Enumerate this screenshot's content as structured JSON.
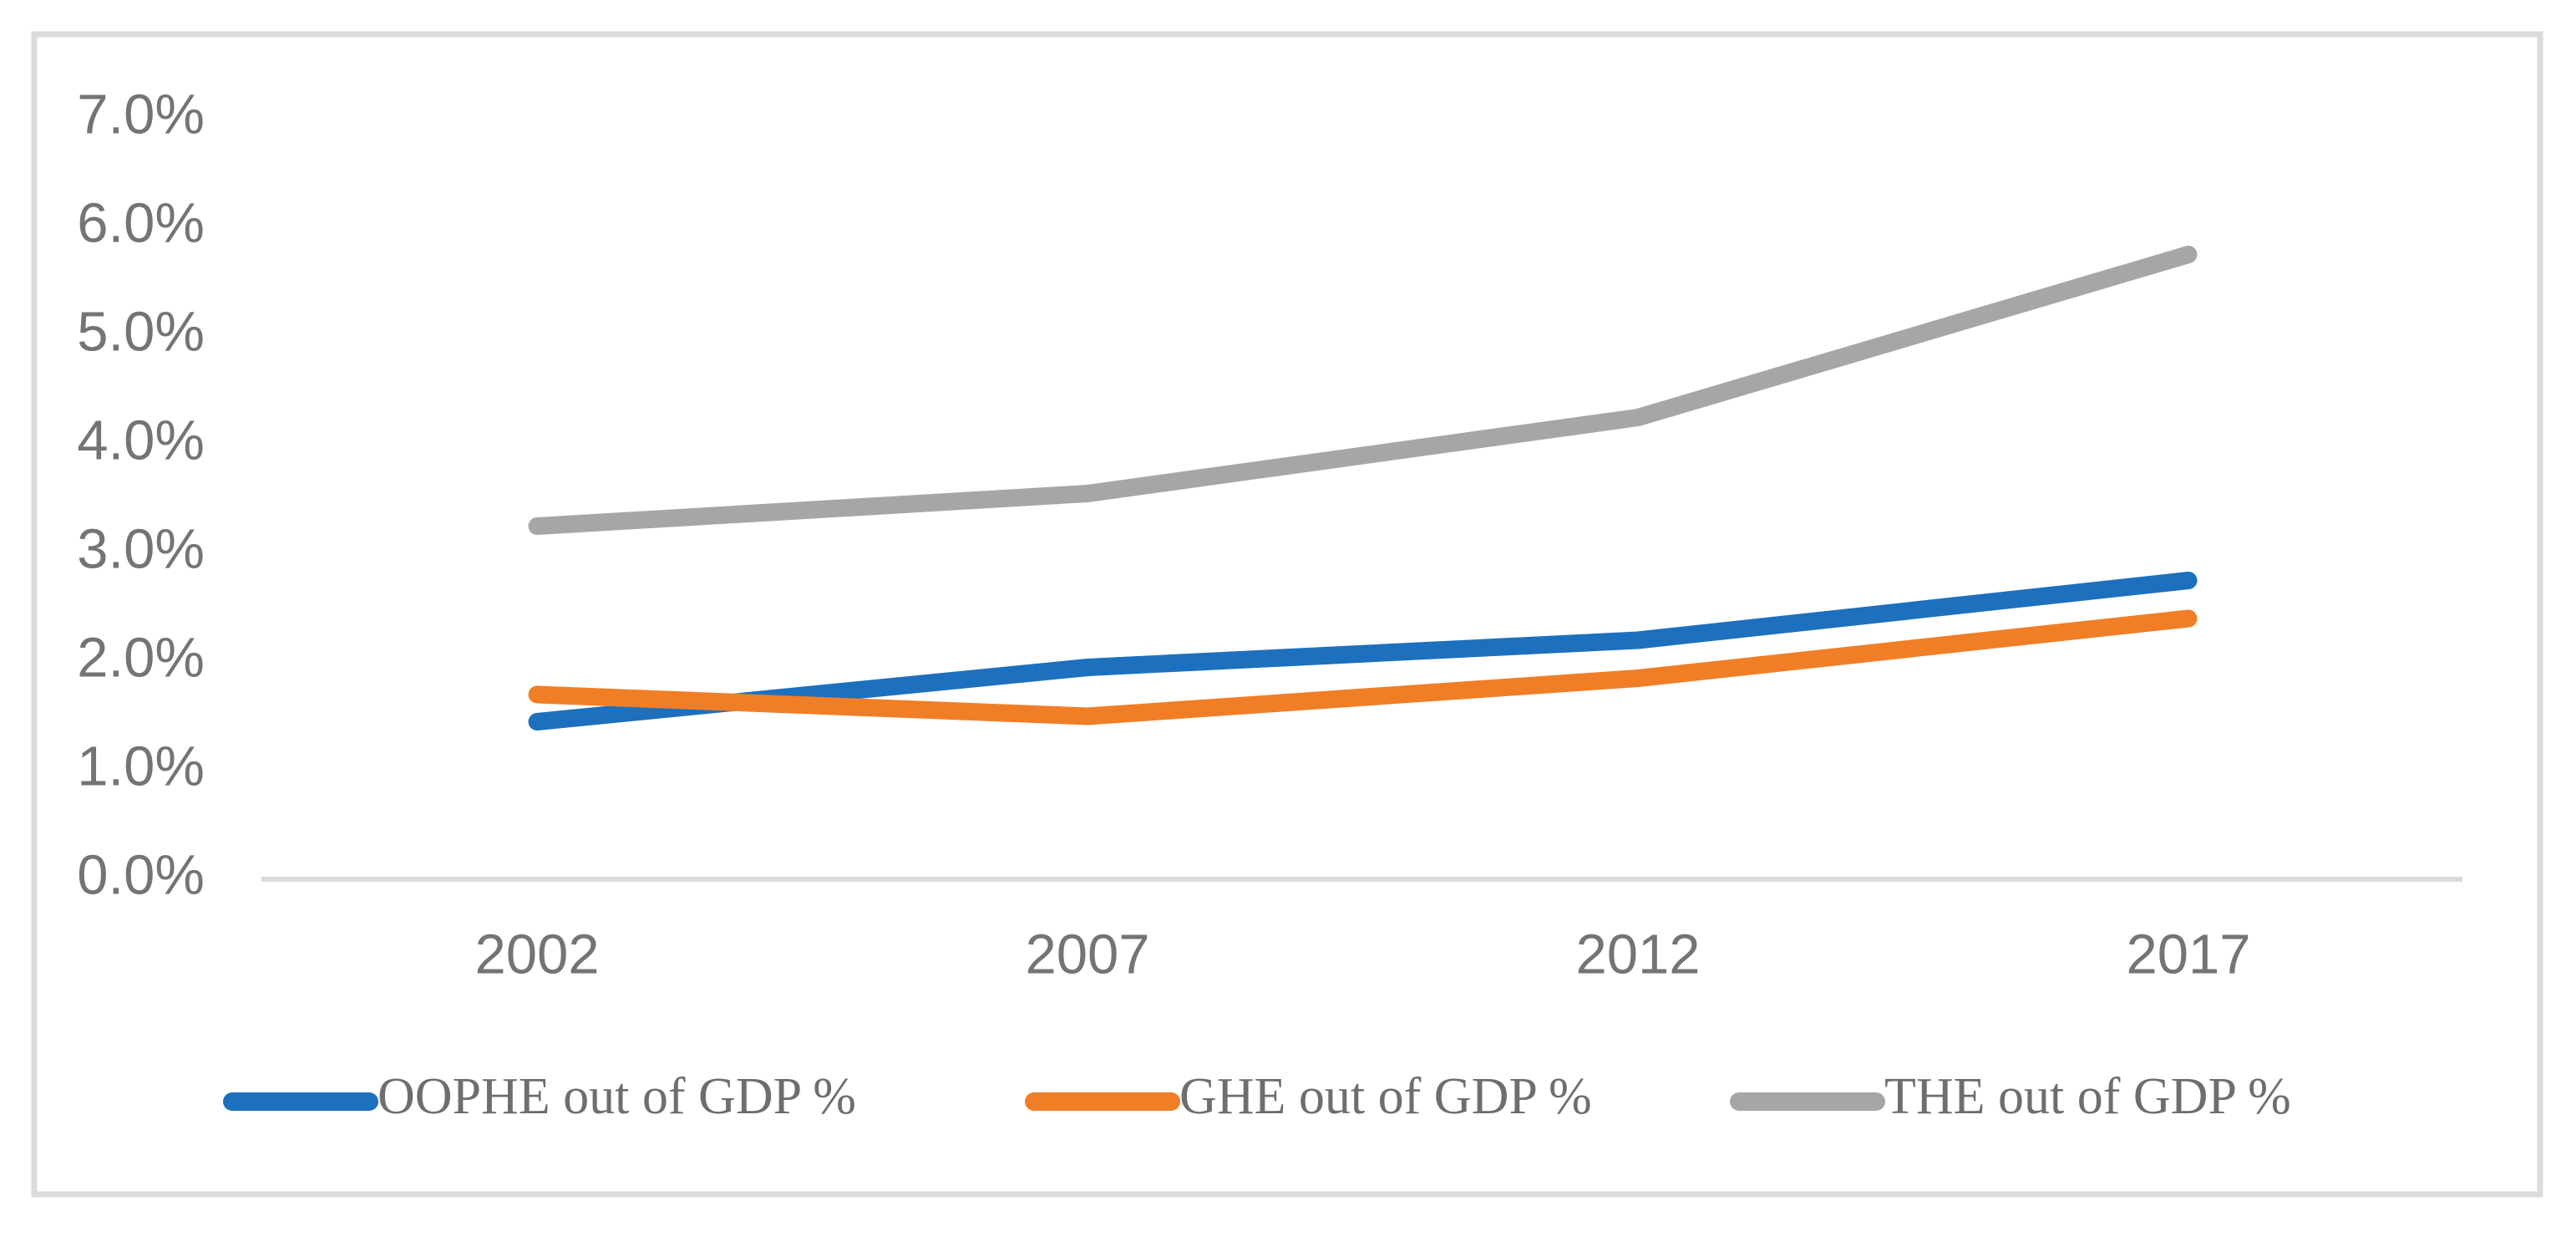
{
  "chart_data": {
    "type": "line",
    "title": "",
    "xlabel": "",
    "ylabel": "",
    "categories": [
      "2002",
      "2007",
      "2012",
      "2017"
    ],
    "series": [
      {
        "name": "OOPHE out of GDP %",
        "color": "#1D70BD",
        "values": [
          1.45,
          1.95,
          2.2,
          2.75
        ]
      },
      {
        "name": "GHE out of GDP %",
        "color": "#F07E26",
        "values": [
          1.7,
          1.5,
          1.85,
          2.4
        ]
      },
      {
        "name": "THE out of GDP %",
        "color": "#A6A6A6",
        "values": [
          3.25,
          3.55,
          4.25,
          5.75
        ]
      }
    ],
    "y_tick_labels": [
      "0.0%",
      "1.0%",
      "2.0%",
      "3.0%",
      "4.0%",
      "5.0%",
      "6.0%",
      "7.0%"
    ],
    "ylim": [
      0,
      7
    ],
    "y_tick_step": 1,
    "grid": false,
    "legend_position": "bottom",
    "axis_color": "#D9D9D9",
    "frame_color": "#DBDBDB",
    "tick_label_color": "#747474"
  }
}
